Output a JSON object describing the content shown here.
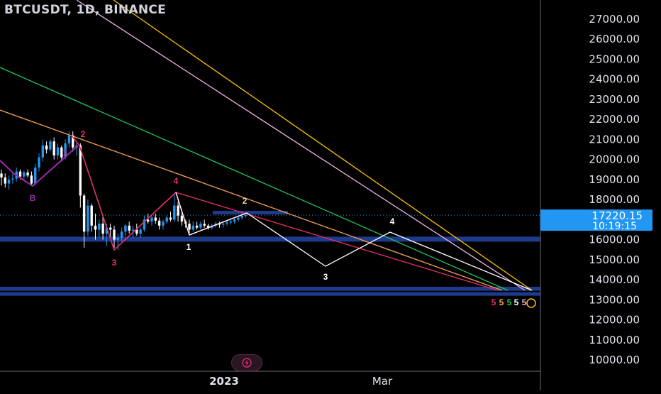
{
  "header": {
    "title": "BTCUSDT, 1D, BINANCE"
  },
  "price_label": {
    "price": "17220.15",
    "countdown": "10:19:15",
    "color": "#2196f3"
  },
  "colors": {
    "background": "#000000",
    "candle_up": "#2196f3",
    "candle_down": "#ffffff",
    "wave_pink": "#e6306e",
    "wave_purple": "#9c27b0",
    "projection": "#ffffff",
    "zone_blue": "#1e3a8a",
    "trend_yellow": "#ffc107",
    "trend_lavender": "#f0b3e6",
    "trend_green": "#22c55e",
    "trend_orange": "#f5a34f",
    "trend_red": "#e6306e"
  },
  "chart_data": {
    "type": "candlestick",
    "title": "BTCUSDT, 1D, BINANCE",
    "y_axis": {
      "ticks": [
        "27000.00",
        "26000.00",
        "25000.00",
        "24000.00",
        "23000.00",
        "22000.00",
        "21000.00",
        "20000.00",
        "19000.00",
        "18000.00",
        "17000.00",
        "16000.00",
        "15000.00",
        "14000.00",
        "13000.00",
        "12000.00",
        "11000.00",
        "10000.00"
      ],
      "range": [
        9800,
        27350
      ],
      "side": "right"
    },
    "x_axis": {
      "ticks": [
        "2023",
        "Mar"
      ]
    },
    "last_price": 17220.15,
    "candles": [
      {
        "o": 19300,
        "h": 19500,
        "l": 18700,
        "c": 19100
      },
      {
        "o": 19100,
        "h": 19300,
        "l": 18600,
        "c": 18800
      },
      {
        "o": 18800,
        "h": 19200,
        "l": 18500,
        "c": 19000
      },
      {
        "o": 19000,
        "h": 19300,
        "l": 18800,
        "c": 19050
      },
      {
        "o": 19050,
        "h": 19600,
        "l": 18900,
        "c": 19400
      },
      {
        "o": 19400,
        "h": 19500,
        "l": 19000,
        "c": 19150
      },
      {
        "o": 19150,
        "h": 19450,
        "l": 19000,
        "c": 19350
      },
      {
        "o": 19350,
        "h": 19500,
        "l": 19100,
        "c": 19200
      },
      {
        "o": 19200,
        "h": 19400,
        "l": 18700,
        "c": 18800
      },
      {
        "o": 18800,
        "h": 19800,
        "l": 18700,
        "c": 19600
      },
      {
        "o": 19600,
        "h": 20300,
        "l": 19400,
        "c": 20100
      },
      {
        "o": 20100,
        "h": 21000,
        "l": 19900,
        "c": 20700
      },
      {
        "o": 20700,
        "h": 20900,
        "l": 20300,
        "c": 20500
      },
      {
        "o": 20500,
        "h": 21000,
        "l": 20400,
        "c": 20900
      },
      {
        "o": 20900,
        "h": 21100,
        "l": 20000,
        "c": 20200
      },
      {
        "o": 20200,
        "h": 20800,
        "l": 20000,
        "c": 20600
      },
      {
        "o": 20600,
        "h": 20700,
        "l": 19900,
        "c": 20100
      },
      {
        "o": 20100,
        "h": 21000,
        "l": 20000,
        "c": 20800
      },
      {
        "o": 20800,
        "h": 21400,
        "l": 20600,
        "c": 21200
      },
      {
        "o": 21200,
        "h": 21400,
        "l": 20400,
        "c": 20600
      },
      {
        "o": 20600,
        "h": 20800,
        "l": 20200,
        "c": 20700
      },
      {
        "o": 20700,
        "h": 20800,
        "l": 17600,
        "c": 18200
      },
      {
        "o": 18200,
        "h": 18300,
        "l": 15600,
        "c": 16400
      },
      {
        "o": 16400,
        "h": 18000,
        "l": 16200,
        "c": 17700
      },
      {
        "o": 17700,
        "h": 17800,
        "l": 16400,
        "c": 16700
      },
      {
        "o": 16700,
        "h": 17300,
        "l": 16000,
        "c": 16500
      },
      {
        "o": 16500,
        "h": 17000,
        "l": 16100,
        "c": 16800
      },
      {
        "o": 16800,
        "h": 17200,
        "l": 16000,
        "c": 16300
      },
      {
        "o": 16300,
        "h": 16800,
        "l": 15700,
        "c": 16600
      },
      {
        "o": 16600,
        "h": 16800,
        "l": 16100,
        "c": 16500
      },
      {
        "o": 16500,
        "h": 16700,
        "l": 15600,
        "c": 16000
      },
      {
        "o": 16000,
        "h": 16300,
        "l": 15500,
        "c": 16100
      },
      {
        "o": 16100,
        "h": 16600,
        "l": 15900,
        "c": 16400
      },
      {
        "o": 16400,
        "h": 16800,
        "l": 16200,
        "c": 16700
      },
      {
        "o": 16700,
        "h": 16900,
        "l": 16300,
        "c": 16450
      },
      {
        "o": 16450,
        "h": 16700,
        "l": 16100,
        "c": 16500
      },
      {
        "o": 16500,
        "h": 16800,
        "l": 16200,
        "c": 16300
      },
      {
        "o": 16300,
        "h": 16600,
        "l": 16100,
        "c": 16500
      },
      {
        "o": 16500,
        "h": 17200,
        "l": 16400,
        "c": 17000
      },
      {
        "o": 17000,
        "h": 17300,
        "l": 16800,
        "c": 16900
      },
      {
        "o": 16900,
        "h": 17200,
        "l": 16700,
        "c": 17100
      },
      {
        "o": 17100,
        "h": 17300,
        "l": 16800,
        "c": 16950
      },
      {
        "o": 16950,
        "h": 17100,
        "l": 16500,
        "c": 16700
      },
      {
        "o": 16700,
        "h": 17000,
        "l": 16500,
        "c": 16900
      },
      {
        "o": 16900,
        "h": 17200,
        "l": 16800,
        "c": 17100
      },
      {
        "o": 17100,
        "h": 17400,
        "l": 16900,
        "c": 17000
      },
      {
        "o": 17000,
        "h": 18300,
        "l": 16900,
        "c": 17700
      },
      {
        "o": 17700,
        "h": 17900,
        "l": 16900,
        "c": 17200
      },
      {
        "o": 17200,
        "h": 17500,
        "l": 16700,
        "c": 16900
      },
      {
        "o": 16900,
        "h": 17000,
        "l": 16600,
        "c": 16800
      },
      {
        "o": 16800,
        "h": 17000,
        "l": 16300,
        "c": 16500
      },
      {
        "o": 16500,
        "h": 16900,
        "l": 16400,
        "c": 16700
      },
      {
        "o": 16700,
        "h": 16900,
        "l": 16500,
        "c": 16600
      },
      {
        "o": 16600,
        "h": 16900,
        "l": 16500,
        "c": 16800
      },
      {
        "o": 16800,
        "h": 17000,
        "l": 16600,
        "c": 16700
      },
      {
        "o": 16700,
        "h": 16800,
        "l": 16500,
        "c": 16600
      },
      {
        "o": 16600,
        "h": 16800,
        "l": 16500,
        "c": 16700
      },
      {
        "o": 16700,
        "h": 16900,
        "l": 16600,
        "c": 16800
      },
      {
        "o": 16800,
        "h": 16900,
        "l": 16600,
        "c": 16750
      },
      {
        "o": 16750,
        "h": 16900,
        "l": 16600,
        "c": 16800
      },
      {
        "o": 16800,
        "h": 16950,
        "l": 16700,
        "c": 16850
      },
      {
        "o": 16850,
        "h": 17000,
        "l": 16750,
        "c": 16900
      },
      {
        "o": 16900,
        "h": 17100,
        "l": 16800,
        "c": 17000
      },
      {
        "o": 17000,
        "h": 17200,
        "l": 16900,
        "c": 17100
      },
      {
        "o": 17100,
        "h": 17300,
        "l": 17000,
        "c": 17200
      },
      {
        "o": 17200,
        "h": 17350,
        "l": 17100,
        "c": 17220.15
      }
    ],
    "zones": [
      {
        "from": 15900,
        "to": 16150
      },
      {
        "from": 13450,
        "to": 13650
      },
      {
        "from": 13200,
        "to": 13380
      }
    ],
    "resistance_segment": 17350,
    "wave_labels": [
      {
        "text": "B",
        "color": "#9c27b0"
      },
      {
        "text": "2",
        "color": "#e6306e"
      },
      {
        "text": "1",
        "color": "#e6306e"
      },
      {
        "text": "3",
        "color": "#e6306e"
      },
      {
        "text": "4",
        "color": "#e6306e"
      },
      {
        "text": "1",
        "color": "#ffffff"
      },
      {
        "text": "2",
        "color": "#f5d08a"
      },
      {
        "text": "3",
        "color": "#ffffff"
      },
      {
        "text": "4",
        "color": "#ffffff"
      },
      {
        "text": "5",
        "color": "#e6306e"
      },
      {
        "text": "5",
        "color": "#f5a34f"
      },
      {
        "text": "5",
        "color": "#22c55e"
      },
      {
        "text": "5",
        "color": "#ffffff"
      },
      {
        "text": "5",
        "color": "#f0b3e6"
      }
    ],
    "target_price": 13000
  }
}
